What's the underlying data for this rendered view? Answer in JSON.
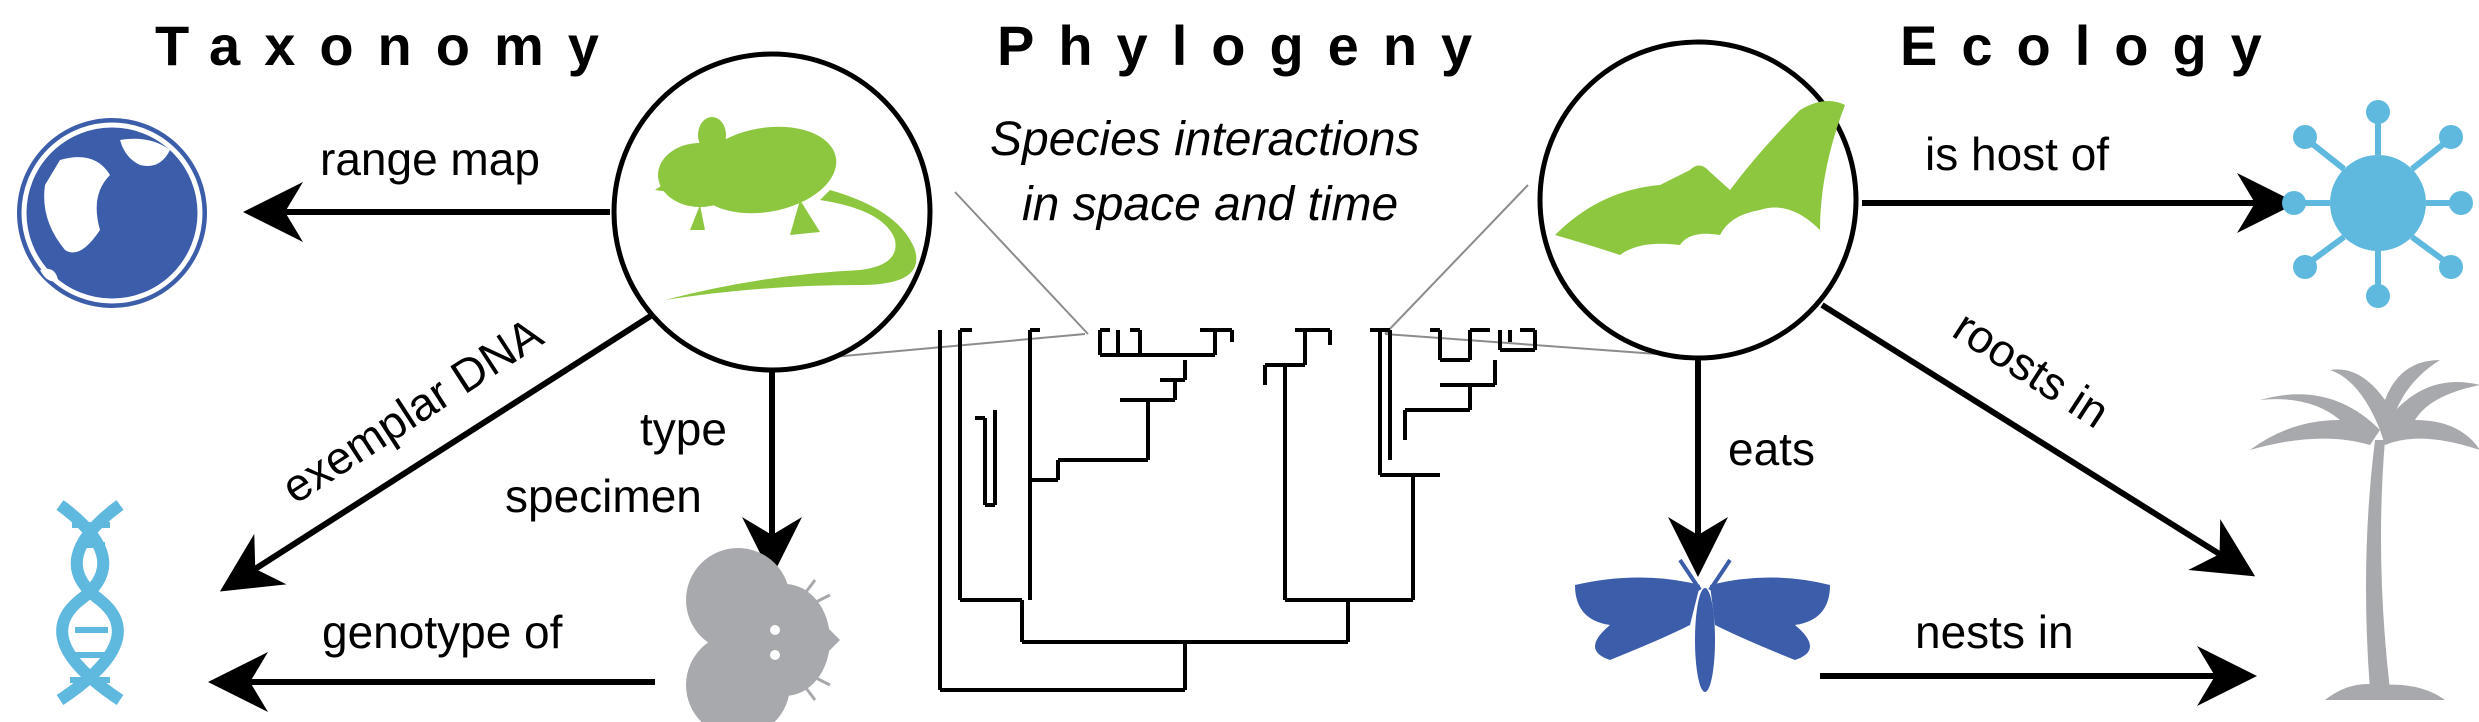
{
  "headings": {
    "taxonomy": "Taxonomy",
    "phylogeny": "Phylogeny",
    "ecology": "Ecology"
  },
  "subtitle": {
    "line1": "Species interactions",
    "line2": "in space and time"
  },
  "edges": {
    "range_map": "range map",
    "exemplar_dna": "exemplar DNA",
    "type_line1": "type",
    "type_line2": "specimen",
    "genotype_of": "genotype of",
    "is_host_of": "is host of",
    "roosts_in": "roosts in",
    "eats": "eats",
    "nests_in": "nests in"
  },
  "icons": {
    "rodent": "rodent-icon",
    "bat": "bat-icon",
    "globe": "globe-icon",
    "dna": "dna-icon",
    "mouse": "mouse-specimen-icon",
    "virus": "virus-icon",
    "palm": "palm-tree-icon",
    "moth": "moth-icon"
  },
  "colors": {
    "green": "#8dc63f",
    "blue": "#3c5daa",
    "light_blue": "#5fb8dd",
    "gray": "#a7a9ac"
  }
}
